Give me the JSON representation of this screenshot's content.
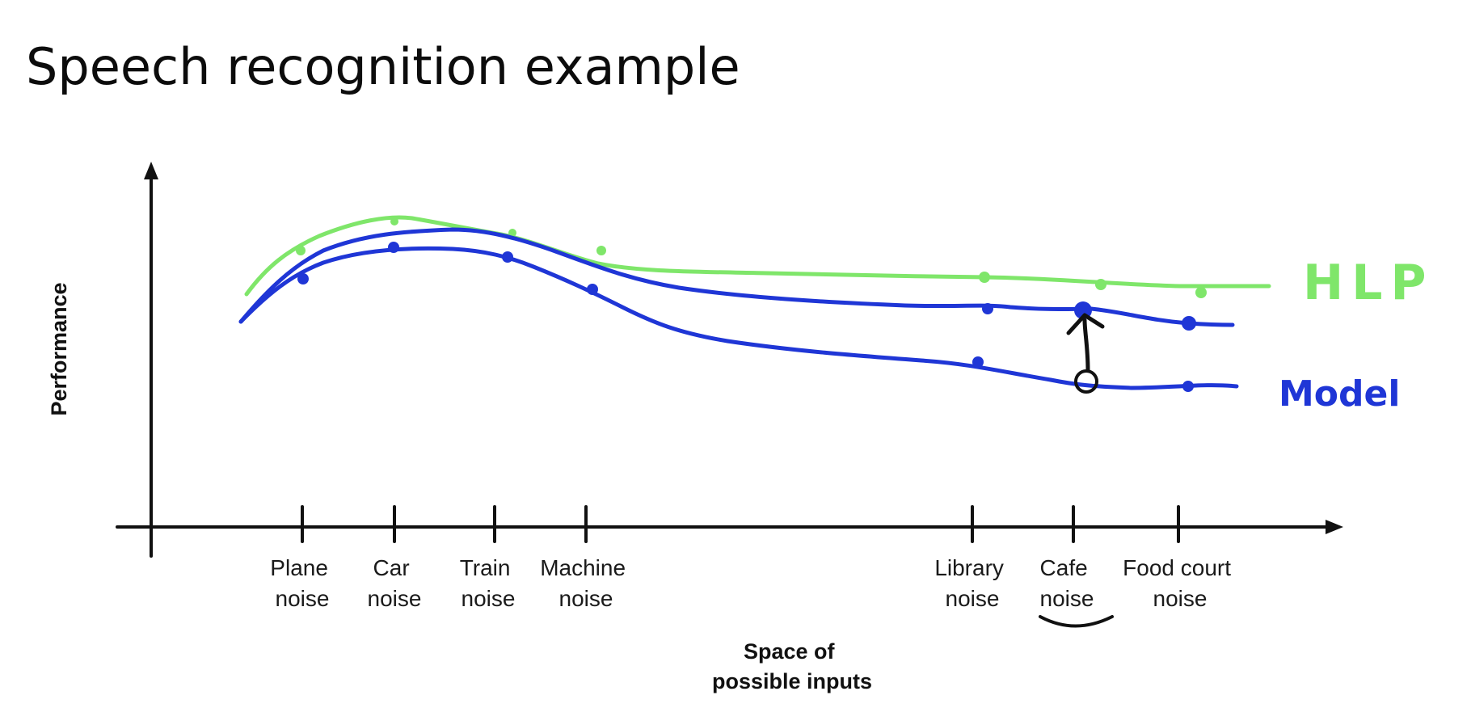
{
  "slide": {
    "title": "Speech recognition example"
  },
  "colors": {
    "hlp": "#7fe66a",
    "model": "#1f36d6",
    "axis": "#111111",
    "annotation": "#111111"
  },
  "chart_data": {
    "type": "line",
    "title": "",
    "xlabel": [
      "Space of",
      "possible inputs"
    ],
    "ylabel": "Performance",
    "categories": [
      [
        "Plane",
        "noise"
      ],
      [
        "Car",
        "noise"
      ],
      [
        "Train",
        "noise"
      ],
      [
        "Machine",
        "noise"
      ],
      [
        "Library",
        "noise"
      ],
      [
        "Cafe",
        "noise"
      ],
      [
        "Food court",
        "noise"
      ]
    ],
    "series_labels": {
      "hlp": "HLP",
      "model": "Model"
    },
    "highlighted_category": "Cafe noise",
    "annotation": "arrow from Model curve up to upper blue curve at Cafe noise (gap)"
  }
}
